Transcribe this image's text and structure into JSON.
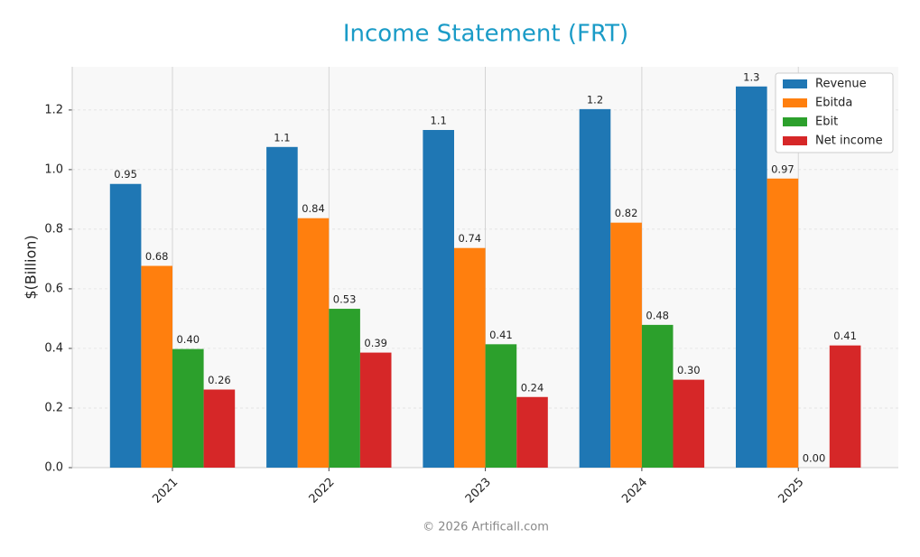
{
  "chart_data": {
    "type": "bar",
    "title": "Income Statement (FRT)",
    "y_label": "$(Billion)",
    "footer": "© 2026 Artificall.com",
    "categories": [
      "2021",
      "2022",
      "2023",
      "2024",
      "2025"
    ],
    "series": [
      {
        "name": "Revenue",
        "color": "#1f77b4",
        "values": [
          0.952,
          1.076,
          1.133,
          1.203,
          1.279
        ],
        "value_labels": [
          "0.95",
          "1.1",
          "1.1",
          "1.2",
          "1.3"
        ]
      },
      {
        "name": "Ebitda",
        "color": "#ff7f0e",
        "values": [
          0.677,
          0.837,
          0.737,
          0.822,
          0.97
        ],
        "value_labels": [
          "0.68",
          "0.84",
          "0.74",
          "0.82",
          "0.97"
        ]
      },
      {
        "name": "Ebit",
        "color": "#2ca02c",
        "values": [
          0.398,
          0.533,
          0.414,
          0.479,
          0
        ],
        "value_labels": [
          "0.40",
          "0.53",
          "0.41",
          "0.48",
          "0.00"
        ]
      },
      {
        "name": "Net income",
        "color": "#d62728",
        "values": [
          0.262,
          0.386,
          0.237,
          0.295,
          0.41
        ],
        "value_labels": [
          "0.26",
          "0.39",
          "0.24",
          "0.30",
          "0.41"
        ]
      }
    ],
    "ylim": [
      0,
      1.345
    ],
    "yticks": [
      {
        "value": 0,
        "label": "0.0"
      },
      0.2,
      0.4,
      0.6,
      0.8,
      {
        "value": 1,
        "label": "1.0"
      },
      1.2
    ],
    "grid": true,
    "legend": "upper right"
  }
}
